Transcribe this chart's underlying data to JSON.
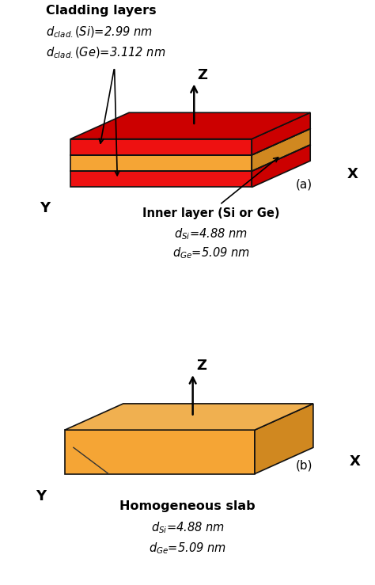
{
  "bg_color": "#ffffff",
  "red_color": "#ee1111",
  "red_top_color": "#cc0000",
  "orange_color": "#f5a535",
  "orange_top_color": "#f0b050",
  "orange_right_color": "#d08820",
  "slab_outline": "#111111",
  "title_a": "Cladding layers",
  "label_a1": "$d_{clad.}(Si)$=2.99 nm",
  "label_a2": "$d_{clad.}(Ge)$=3.112 nm",
  "inner_label": "Inner layer (Si or Ge)",
  "inner_d1": "$d_{Si}$=4.88 nm",
  "inner_d2": "$d_{Ge}$=5.09 nm",
  "title_b": "Homogeneous slab",
  "label_b1": "$d_{Si}$=4.88 nm",
  "label_b2": "$d_{Ge}$=5.09 nm",
  "panel_a": "(a)",
  "panel_b": "(b)",
  "axis_lw": 1.8,
  "slab_lw": 1.2
}
